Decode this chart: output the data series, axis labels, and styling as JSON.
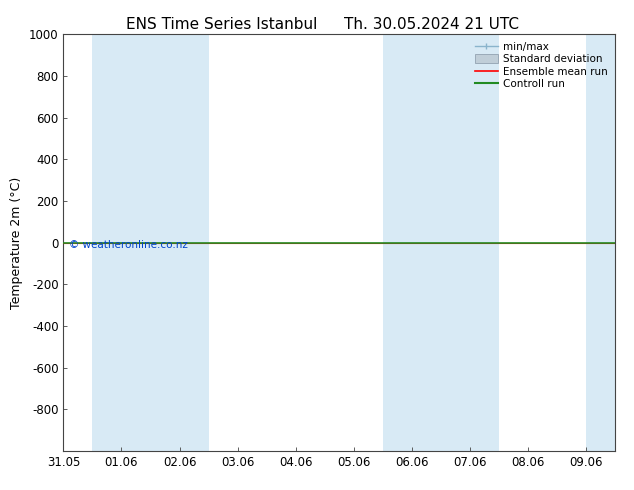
{
  "title_left": "ENS Time Series Istanbul",
  "title_right": "Th. 30.05.2024 21 UTC",
  "ylabel": "Temperature 2m (°C)",
  "ylim_top": -1000,
  "ylim_bottom": 1000,
  "yticks": [
    -800,
    -600,
    -400,
    -200,
    0,
    200,
    400,
    600,
    800,
    1000
  ],
  "xlim": [
    0.0,
    9.5
  ],
  "xtick_labels": [
    "31.05",
    "01.06",
    "02.06",
    "03.06",
    "04.06",
    "05.06",
    "06.06",
    "07.06",
    "08.06",
    "09.06"
  ],
  "xtick_positions": [
    0,
    1,
    2,
    3,
    4,
    5,
    6,
    7,
    8,
    9
  ],
  "shaded_bands": [
    {
      "x_start": 0.5,
      "x_end": 1.5
    },
    {
      "x_start": 1.5,
      "x_end": 2.5
    },
    {
      "x_start": 5.5,
      "x_end": 6.5
    },
    {
      "x_start": 6.5,
      "x_end": 7.5
    },
    {
      "x_start": 9.0,
      "x_end": 9.5
    }
  ],
  "green_line_y": 0,
  "red_line_y": 0,
  "watermark": "© weatheronline.co.nz",
  "legend_labels": [
    "min/max",
    "Standard deviation",
    "Ensemble mean run",
    "Controll run"
  ],
  "bg_color": "#ffffff",
  "band_color": "#d8eaf5",
  "title_fontsize": 11,
  "axis_fontsize": 9,
  "tick_fontsize": 8.5
}
